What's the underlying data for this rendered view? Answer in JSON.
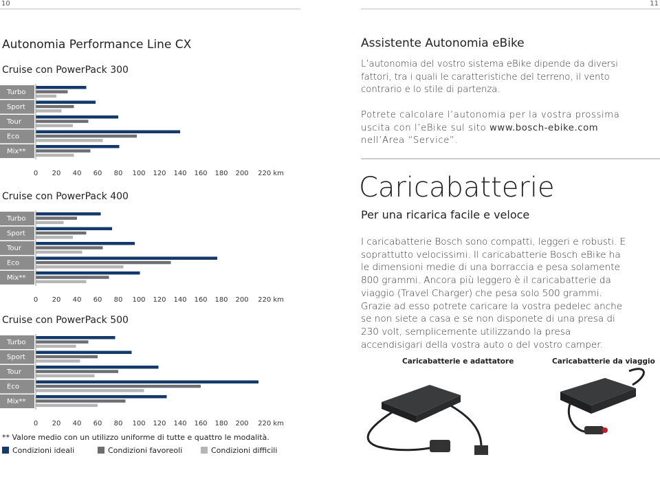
{
  "page_numbers": [
    "10",
    "11"
  ],
  "left": {
    "title": "Autonomia Performance Line CX",
    "footnote": "** Valore medio con un utilizzo uniforme di tutte e quattro le modalità.",
    "legend": [
      {
        "name": "Condizioni ideali",
        "color": "#143a6b"
      },
      {
        "name": "Condizioni favoreoli",
        "color": "#6d6e71"
      },
      {
        "name": "Condizioni difficili",
        "color": "#b5b5b5"
      }
    ]
  },
  "chart_data": [
    {
      "type": "bar",
      "orientation": "horizontal",
      "title": "Cruise con PowerPack 300",
      "categories": [
        "Turbo",
        "Sport",
        "Tour",
        "Eco",
        "Mix**"
      ],
      "series": [
        {
          "values": [
            49,
            58,
            80,
            140,
            81
          ]
        },
        {
          "values": [
            31,
            37,
            51,
            98,
            53
          ]
        },
        {
          "values": [
            20,
            25,
            36,
            65,
            37
          ]
        }
      ],
      "xlim": [
        0,
        220
      ],
      "xticks": [
        0,
        20,
        40,
        60,
        80,
        100,
        120,
        140,
        160,
        180,
        200,
        {
          "value": 220,
          "label": "220 km"
        }
      ]
    },
    {
      "type": "bar",
      "orientation": "horizontal",
      "title": "Cruise con PowerPack 400",
      "categories": [
        "Turbo",
        "Sport",
        "Tour",
        "Eco",
        "Mix**"
      ],
      "series": [
        {
          "values": [
            63,
            74,
            96,
            176,
            101
          ]
        },
        {
          "values": [
            40,
            49,
            65,
            131,
            71
          ]
        },
        {
          "values": [
            27,
            36,
            45,
            85,
            49
          ]
        }
      ],
      "xlim": [
        0,
        220
      ],
      "xticks": [
        0,
        20,
        40,
        60,
        80,
        100,
        120,
        140,
        160,
        180,
        200,
        {
          "value": 220,
          "label": "220 km"
        }
      ]
    },
    {
      "type": "bar",
      "orientation": "horizontal",
      "title": "Cruise con PowerPack 500",
      "categories": [
        "Turbo",
        "Sport",
        "Tour",
        "Eco",
        "Mix**"
      ],
      "series": [
        {
          "values": [
            77,
            93,
            119,
            216,
            127
          ]
        },
        {
          "values": [
            51,
            60,
            80,
            160,
            87
          ]
        },
        {
          "values": [
            39,
            43,
            57,
            105,
            60
          ]
        }
      ],
      "xlim": [
        0,
        220
      ],
      "xticks": [
        0,
        20,
        40,
        60,
        80,
        100,
        120,
        140,
        160,
        180,
        200,
        {
          "value": 220,
          "label": "220 km"
        }
      ]
    }
  ],
  "right": {
    "title": "Assistente Autonomia eBike",
    "paragraph1": "L’autonomia del vostro sistema eBike dipende da diversi fattori, tra i quali le caratteristiche del terreno, il vento contrario e lo stile di partenza.",
    "paragraph2": [
      "Potrete calcolare l’autonomia per la vostra prossima uscita con l’eBike sul sito ",
      "www.bosch-ebike.com",
      " nell’Area “Service”."
    ],
    "heading": "Caricabatterie",
    "subtitle": "Per una ricarica facile e veloce",
    "paragraph3": "I caricabatterie Bosch sono compatti, leggeri e robusti. E soprattutto velocissimi. Il caricabatterie Bosch eBike ha le dimensioni medie di una borraccia e pesa solamente 800 grammi. Ancora più leggero è il caricabatterie da viaggio (Travel Charger) che pesa solo 500 grammi. Grazie ad esso potrete caricare la vostra pedelec anche se non siete a casa e se non disponete di una presa di 230 volt, semplicemente utilizzando la presa accendisigari della vostra auto o del vostro camper.",
    "captions": [
      "Caricabatterie e adattatore",
      "Caricabatterie da viaggio"
    ]
  }
}
